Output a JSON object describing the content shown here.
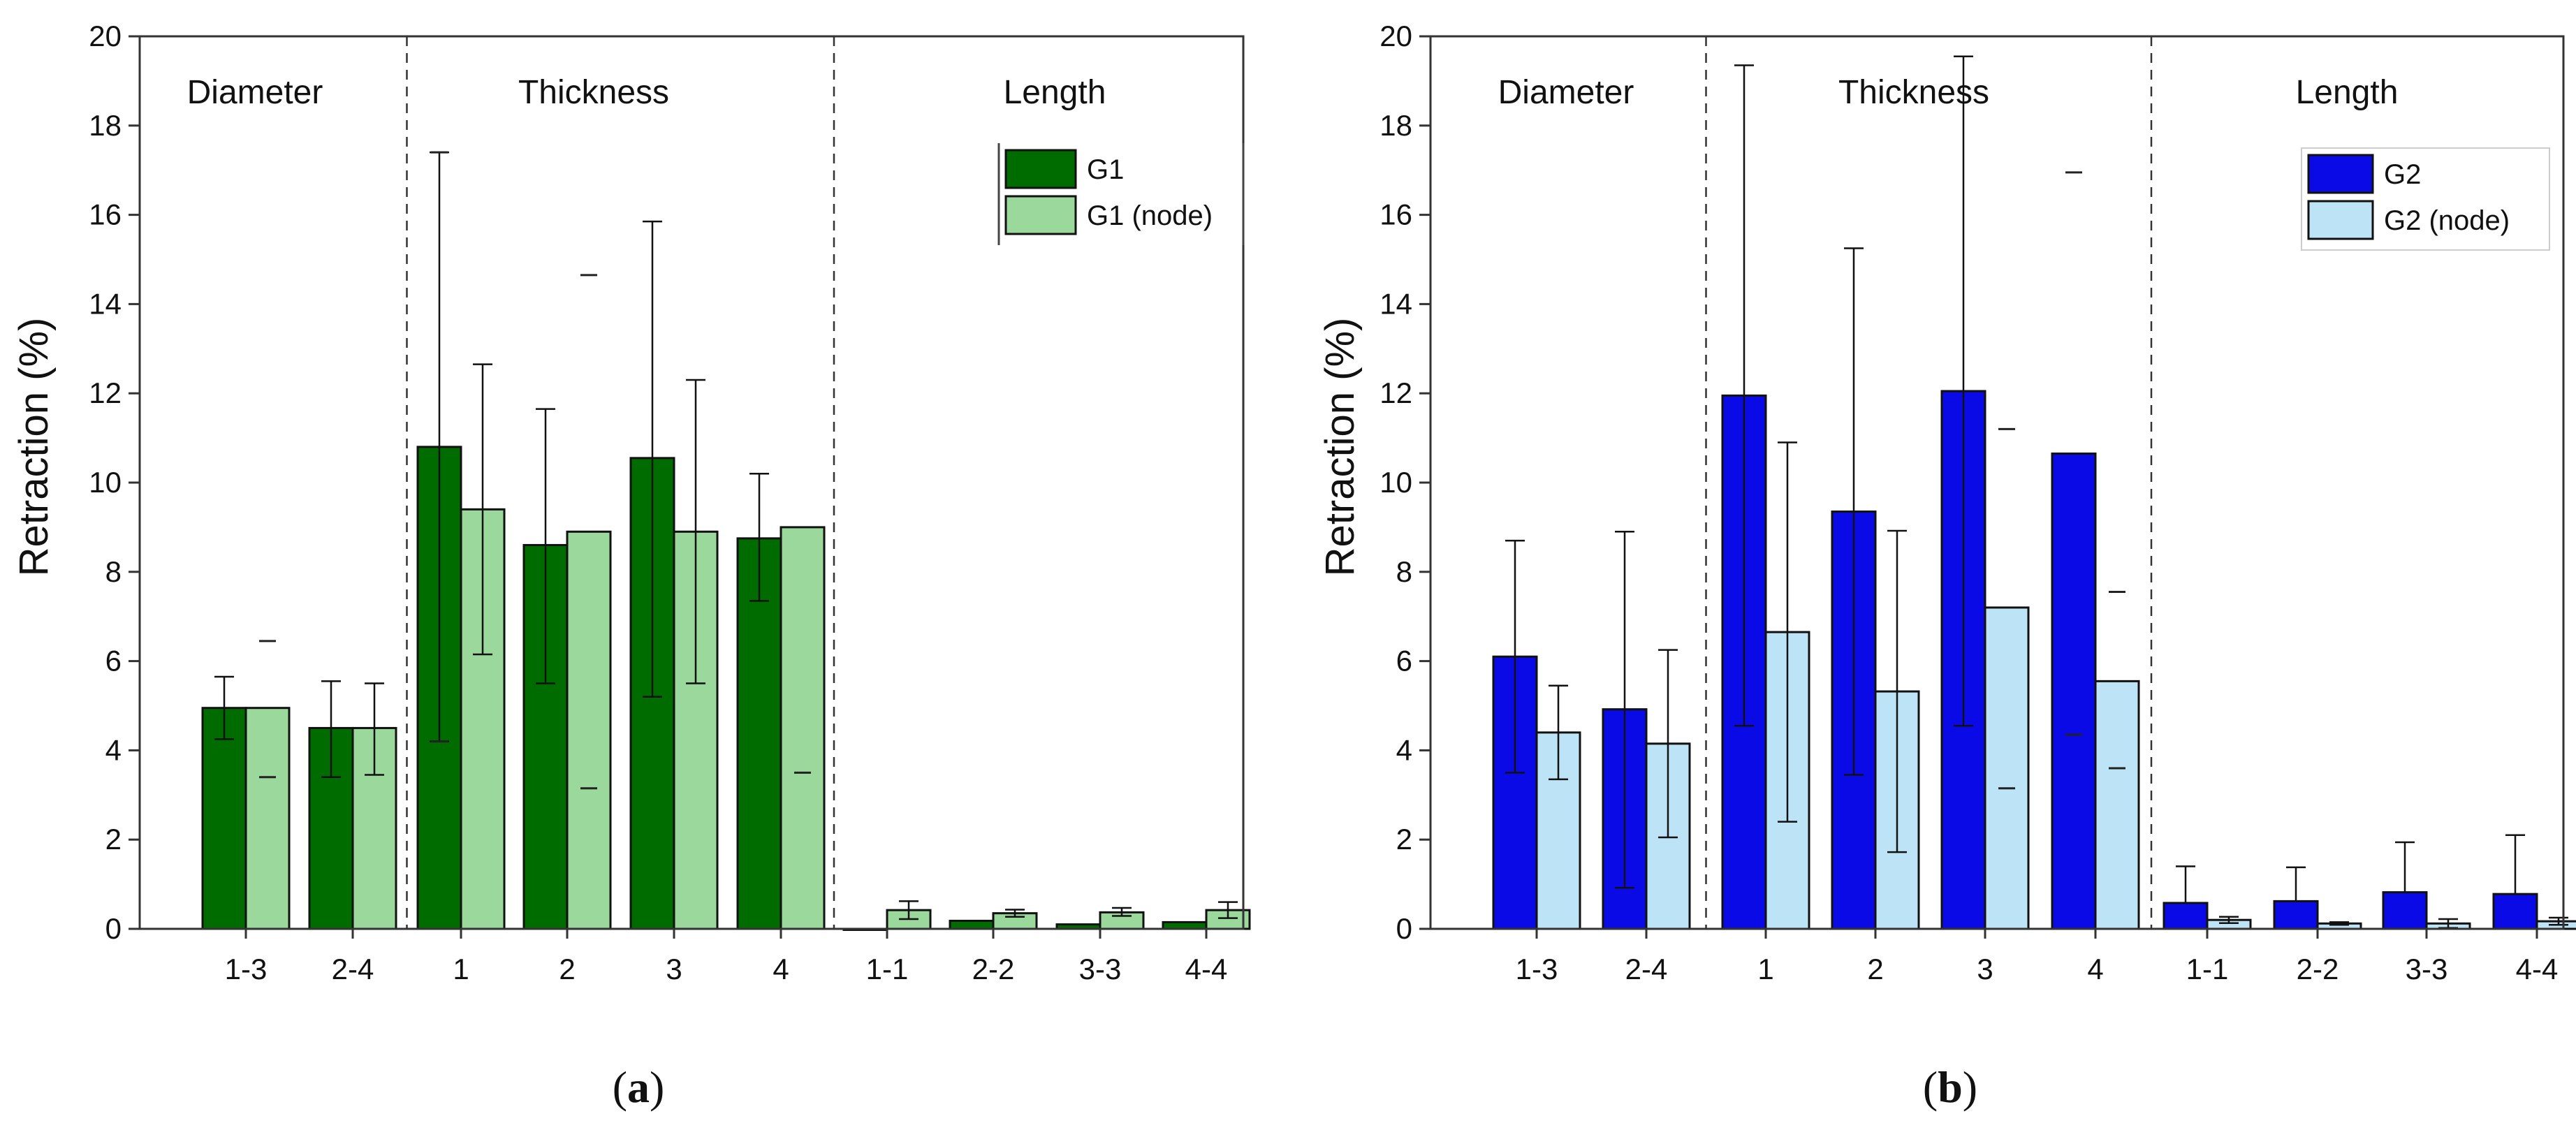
{
  "chart_data": [
    {
      "type": "bar",
      "panel_label": "a",
      "ylabel": "Retraction (%)",
      "ylim": [
        0,
        20
      ],
      "yticks": [
        "0",
        "2",
        "4",
        "6",
        "8",
        "10",
        "12",
        "14",
        "16",
        "18",
        "20"
      ],
      "categories": [
        "1-3",
        "2-4",
        "1",
        "2",
        "3",
        "4",
        "1-1",
        "2-2",
        "3-3",
        "4-4"
      ],
      "sections": [
        {
          "name": "Diameter",
          "categories": [
            "1-3",
            "2-4"
          ]
        },
        {
          "name": "Thickness",
          "categories": [
            "1",
            "2",
            "3",
            "4"
          ]
        },
        {
          "name": "Length",
          "categories": [
            "1-1",
            "2-2",
            "3-3",
            "4-4"
          ]
        }
      ],
      "legend_position": "top-right",
      "series": [
        {
          "name": "G1",
          "color": "#006c00",
          "values": [
            4.95,
            4.5,
            10.8,
            8.6,
            10.55,
            8.75,
            0.0,
            0.18,
            0.1,
            0.15
          ],
          "err_lower": [
            0.7,
            1.1,
            6.6,
            3.1,
            5.35,
            1.4,
            0.0,
            0.0,
            0.0,
            0.0
          ],
          "err_upper": [
            0.7,
            1.05,
            6.6,
            3.05,
            5.3,
            1.45,
            0.0,
            0.0,
            0.0,
            0.0
          ],
          "markers": [
            [],
            [],
            [
              17.4,
              4.2
            ],
            [],
            [],
            [],
            [],
            [],
            [],
            []
          ]
        },
        {
          "name": "G1 (node)",
          "color": "#9bd89b",
          "values": [
            4.95,
            4.5,
            9.4,
            8.9,
            8.9,
            9.0,
            0.42,
            0.35,
            0.37,
            0.42
          ],
          "err_lower": [
            0.0,
            1.05,
            3.25,
            0.0,
            3.4,
            0.0,
            0.2,
            0.08,
            0.08,
            0.18
          ],
          "err_upper": [
            0.0,
            1.0,
            3.25,
            0.0,
            3.4,
            0.0,
            0.2,
            0.08,
            0.1,
            0.18
          ],
          "markers": [
            [
              6.45,
              3.4
            ],
            [],
            [],
            [
              14.65,
              3.15
            ],
            [],
            [
              3.5
            ],
            [],
            [],
            [],
            []
          ]
        }
      ]
    },
    {
      "type": "bar",
      "panel_label": "b",
      "ylabel": "Retraction (%)",
      "ylim": [
        0,
        20
      ],
      "yticks": [
        "0",
        "2",
        "4",
        "6",
        "8",
        "10",
        "12",
        "14",
        "16",
        "18",
        "20"
      ],
      "categories": [
        "1-3",
        "2-4",
        "1",
        "2",
        "3",
        "4",
        "1-1",
        "2-2",
        "3-3",
        "4-4"
      ],
      "sections": [
        {
          "name": "Diameter",
          "categories": [
            "1-3",
            "2-4"
          ]
        },
        {
          "name": "Thickness",
          "categories": [
            "1",
            "2",
            "3",
            "4"
          ]
        },
        {
          "name": "Length",
          "categories": [
            "1-1",
            "2-2",
            "3-3",
            "4-4"
          ]
        }
      ],
      "legend_position": "top-right",
      "series": [
        {
          "name": "G2",
          "color": "#0a0ae6",
          "values": [
            6.1,
            4.92,
            11.95,
            9.35,
            12.05,
            10.65,
            0.58,
            0.62,
            0.82,
            0.78
          ],
          "err_lower": [
            2.6,
            4.0,
            7.4,
            5.9,
            7.5,
            0.0,
            0.0,
            0.0,
            0.0,
            0.0
          ],
          "err_upper": [
            2.6,
            3.98,
            7.4,
            5.9,
            7.5,
            0.0,
            0.82,
            0.76,
            1.12,
            1.32
          ],
          "markers": [
            [],
            [],
            [],
            [],
            [],
            [
              16.95,
              4.35
            ],
            [],
            [],
            [],
            []
          ]
        },
        {
          "name": "G2 (node)",
          "color": "#bde3f7",
          "values": [
            4.4,
            4.15,
            6.65,
            5.32,
            7.2,
            5.55,
            0.2,
            0.12,
            0.12,
            0.17
          ],
          "err_lower": [
            1.05,
            2.1,
            4.25,
            3.6,
            0.0,
            0.0,
            0.07,
            0.03,
            0.1,
            0.08
          ],
          "err_upper": [
            1.05,
            2.1,
            4.25,
            3.6,
            0.0,
            0.0,
            0.07,
            0.03,
            0.1,
            0.08
          ],
          "markers": [
            [],
            [],
            [],
            [],
            [
              11.2,
              3.15
            ],
            [
              7.55,
              3.6
            ],
            [],
            [],
            [],
            []
          ]
        }
      ]
    }
  ]
}
